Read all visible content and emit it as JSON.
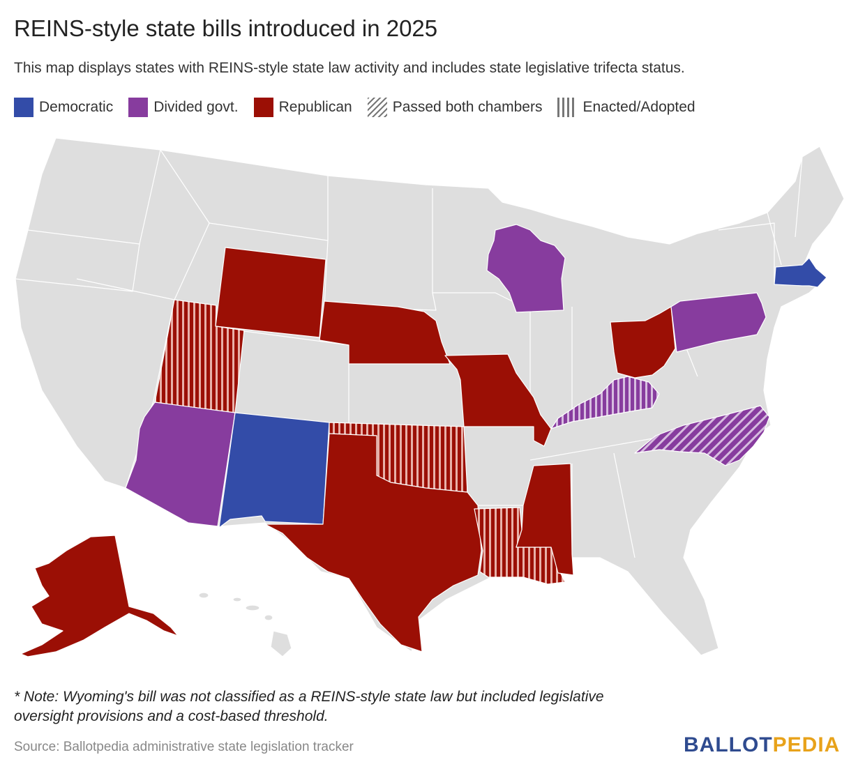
{
  "title": "REINS-style state bills introduced in 2025",
  "subtitle": "This map displays states with REINS-style state law activity and includes state legislative trifecta status.",
  "legend": [
    {
      "label": "Democratic",
      "color": "#334ca8",
      "pattern": "solid"
    },
    {
      "label": "Divided govt.",
      "color": "#873c9e",
      "pattern": "solid"
    },
    {
      "label": "Republican",
      "color": "#9b0f05",
      "pattern": "solid"
    },
    {
      "label": "Passed both chambers",
      "color": "#666666",
      "pattern": "diagonal"
    },
    {
      "label": "Enacted/Adopted",
      "color": "#666666",
      "pattern": "vertical"
    }
  ],
  "colors": {
    "democratic": "#334ca8",
    "divided": "#873c9e",
    "republican": "#9b0f05",
    "no_activity": "#dedede",
    "border": "#ffffff"
  },
  "states": [
    {
      "name": "Alaska",
      "status": "republican",
      "progress": "none"
    },
    {
      "name": "Arizona",
      "status": "divided",
      "progress": "none"
    },
    {
      "name": "Kentucky",
      "status": "divided",
      "progress": "enacted"
    },
    {
      "name": "Louisiana",
      "status": "republican",
      "progress": "enacted"
    },
    {
      "name": "Massachusetts",
      "status": "democratic",
      "progress": "none"
    },
    {
      "name": "Mississippi",
      "status": "republican",
      "progress": "none"
    },
    {
      "name": "Missouri",
      "status": "republican",
      "progress": "none"
    },
    {
      "name": "Nebraska",
      "status": "republican",
      "progress": "none"
    },
    {
      "name": "New Mexico",
      "status": "democratic",
      "progress": "none"
    },
    {
      "name": "North Carolina",
      "status": "divided",
      "progress": "passed"
    },
    {
      "name": "Ohio",
      "status": "republican",
      "progress": "none"
    },
    {
      "name": "Oklahoma",
      "status": "republican",
      "progress": "enacted"
    },
    {
      "name": "Pennsylvania",
      "status": "divided",
      "progress": "none"
    },
    {
      "name": "Texas",
      "status": "republican",
      "progress": "none"
    },
    {
      "name": "Utah",
      "status": "republican",
      "progress": "enacted"
    },
    {
      "name": "Wisconsin",
      "status": "divided",
      "progress": "none"
    },
    {
      "name": "Wyoming",
      "status": "republican",
      "progress": "none"
    }
  ],
  "note": "* Note: Wyoming's bill was not classified as a REINS-style state law but included legislative oversight provisions and a cost-based threshold.",
  "source": "Source: Ballotpedia administrative state legislation tracker",
  "logo": {
    "part1": "BALLOT",
    "part2": "PEDIA"
  }
}
